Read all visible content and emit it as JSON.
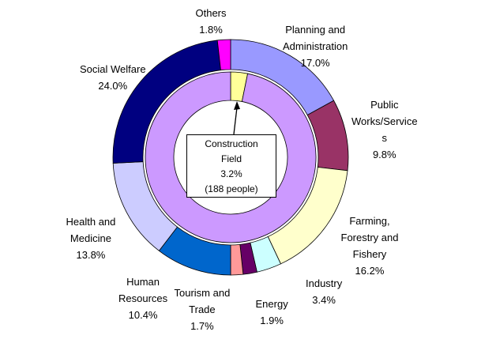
{
  "chart_data": {
    "type": "pie",
    "variant": "double-donut",
    "title": "",
    "outer_ring": [
      {
        "lines": [
          "Planning and",
          "Administration"
        ],
        "value": 17.0,
        "label": "17.0%",
        "color": "#9999FF"
      },
      {
        "lines": [
          "Public",
          "Works/Service",
          "s"
        ],
        "value": 9.8,
        "label": "9.8%",
        "color": "#993366"
      },
      {
        "lines": [
          "Farming,",
          "Forestry and",
          "Fishery"
        ],
        "value": 16.2,
        "label": "16.2%",
        "color": "#FFFFCC"
      },
      {
        "lines": [
          "Industry"
        ],
        "value": 3.4,
        "label": "3.4%",
        "color": "#CCFFFF"
      },
      {
        "lines": [
          "Energy"
        ],
        "value": 1.9,
        "label": "1.9%",
        "color": "#660066"
      },
      {
        "lines": [
          "Tourism and",
          "Trade"
        ],
        "value": 1.7,
        "label": "1.7%",
        "color": "#FF9999"
      },
      {
        "lines": [
          "Human",
          "Resources"
        ],
        "value": 10.4,
        "label": "10.4%",
        "color": "#0066CC"
      },
      {
        "lines": [
          "Health and",
          "Medicine"
        ],
        "value": 13.8,
        "label": "13.8%",
        "color": "#CCCCFF"
      },
      {
        "lines": [
          "Social Welfare"
        ],
        "value": 24.0,
        "label": "24.0%",
        "color": "#000080"
      },
      {
        "lines": [
          "Others"
        ],
        "value": 1.8,
        "label": "1.8%",
        "color": "#FF00FF"
      }
    ],
    "inner_ring": [
      {
        "name": "Construction Field",
        "value": 3.2,
        "color": "#FFFF99"
      },
      {
        "name": "",
        "value": 96.8,
        "color": "#CC99FF"
      }
    ],
    "callout": {
      "lines": [
        "Construction",
        "Field",
        "3.2%",
        "(188 people)"
      ]
    }
  }
}
